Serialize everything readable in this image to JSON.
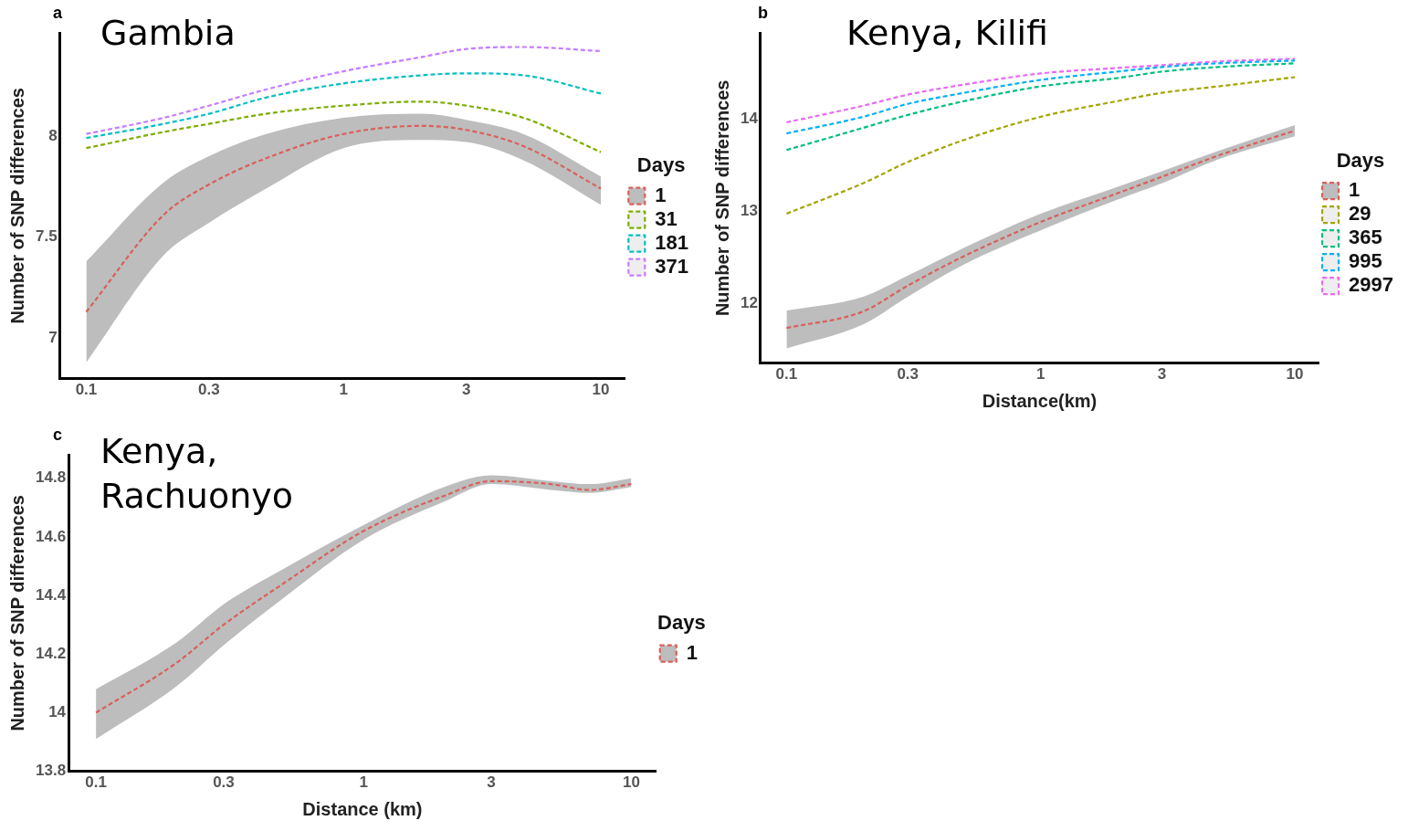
{
  "chart_data": [
    {
      "type": "line",
      "title": "Gambia",
      "ylabel": "Number of SNP differences",
      "legend_title": "Days",
      "annotations": [
        "a"
      ],
      "log": "x",
      "grid": false,
      "legend": "right",
      "marker": "none",
      "line_style": "dashed",
      "x": [
        0.1,
        0.2,
        0.3,
        0.5,
        1,
        2,
        3,
        5,
        10
      ],
      "xlim": [
        0.079,
        12.4
      ],
      "xticks": [
        0.1,
        0.3,
        1,
        3,
        10
      ],
      "ylim": [
        6.8,
        8.51
      ],
      "yticks": [
        7.0,
        7.5,
        8.0
      ],
      "series": [
        {
          "name": "1",
          "color": "#d9605a",
          "values": [
            7.13,
            7.61,
            7.76,
            7.89,
            8.01,
            8.05,
            8.03,
            7.95,
            7.74
          ],
          "lower": [
            6.88,
            7.41,
            7.57,
            7.74,
            7.94,
            7.98,
            7.97,
            7.88,
            7.66
          ],
          "upper": [
            7.38,
            7.77,
            7.9,
            8.01,
            8.09,
            8.11,
            8.08,
            8.01,
            7.8
          ]
        },
        {
          "name": "31",
          "color": "#7cae00",
          "values": [
            7.94,
            8.02,
            8.06,
            8.11,
            8.15,
            8.17,
            8.15,
            8.09,
            7.92
          ]
        },
        {
          "name": "181",
          "color": "#00bfc4",
          "values": [
            7.99,
            8.06,
            8.11,
            8.19,
            8.26,
            8.3,
            8.31,
            8.3,
            8.21
          ]
        },
        {
          "name": "371",
          "color": "#c77cff",
          "values": [
            8.01,
            8.09,
            8.15,
            8.23,
            8.32,
            8.39,
            8.43,
            8.44,
            8.42
          ]
        }
      ]
    },
    {
      "type": "line",
      "title": "Kenya, Kilifi",
      "xlabel": "Distance(km)",
      "ylabel": "Number of SNP differences",
      "legend_title": "Days",
      "annotations": [
        "b"
      ],
      "log": "x",
      "grid": false,
      "legend": "right",
      "marker": "none",
      "line_style": "dashed",
      "x": [
        0.1,
        0.2,
        0.3,
        0.5,
        1,
        2,
        3,
        5,
        10
      ],
      "xlim": [
        0.079,
        12.4
      ],
      "xticks": [
        0.1,
        0.3,
        1,
        3,
        10
      ],
      "ylim": [
        11.35,
        14.93
      ],
      "yticks": [
        12,
        13,
        14
      ],
      "series": [
        {
          "name": "1",
          "color": "#d9605a",
          "values": [
            11.73,
            11.91,
            12.19,
            12.51,
            12.88,
            13.19,
            13.37,
            13.6,
            13.87
          ],
          "lower": [
            11.51,
            11.77,
            12.07,
            12.42,
            12.79,
            13.12,
            13.3,
            13.56,
            13.81
          ],
          "upper": [
            11.92,
            12.07,
            12.3,
            12.6,
            12.97,
            13.26,
            13.43,
            13.65,
            13.93
          ]
        },
        {
          "name": "29",
          "color": "#a3a500",
          "values": [
            12.97,
            13.3,
            13.53,
            13.77,
            14.02,
            14.19,
            14.28,
            14.35,
            14.45
          ]
        },
        {
          "name": "365",
          "color": "#00bf7d",
          "values": [
            13.66,
            13.9,
            14.04,
            14.19,
            14.35,
            14.44,
            14.51,
            14.56,
            14.6
          ]
        },
        {
          "name": "995",
          "color": "#00b0f6",
          "values": [
            13.84,
            14.02,
            14.16,
            14.28,
            14.42,
            14.51,
            14.56,
            14.6,
            14.63
          ]
        },
        {
          "name": "2997",
          "color": "#e76bf3",
          "values": [
            13.96,
            14.14,
            14.26,
            14.37,
            14.49,
            14.55,
            14.58,
            14.62,
            14.65
          ]
        }
      ]
    },
    {
      "type": "line",
      "title": "Kenya, Rachuonyo",
      "xlabel": "Distance (km)",
      "ylabel": "Number of SNP differences",
      "legend_title": "Days",
      "annotations": [
        "c"
      ],
      "log": "x",
      "grid": false,
      "legend": "right",
      "marker": "none",
      "line_style": "dashed",
      "x": [
        0.1,
        0.2,
        0.3,
        0.5,
        1,
        2,
        3,
        5,
        7,
        10
      ],
      "xlim": [
        0.079,
        12.4
      ],
      "xticks": [
        0.1,
        0.3,
        1,
        3,
        10
      ],
      "ylim": [
        13.8,
        14.88
      ],
      "yticks": [
        13.8,
        14.0,
        14.2,
        14.4,
        14.6,
        14.8
      ],
      "series": [
        {
          "name": "1",
          "color": "#d9605a",
          "values": [
            14.0,
            14.17,
            14.3,
            14.44,
            14.62,
            14.74,
            14.79,
            14.78,
            14.76,
            14.78
          ],
          "lower": [
            13.91,
            14.09,
            14.23,
            14.39,
            14.59,
            14.72,
            14.78,
            14.76,
            14.75,
            14.77
          ],
          "upper": [
            14.08,
            14.24,
            14.37,
            14.49,
            14.64,
            14.77,
            14.81,
            14.79,
            14.78,
            14.8
          ]
        }
      ]
    }
  ]
}
